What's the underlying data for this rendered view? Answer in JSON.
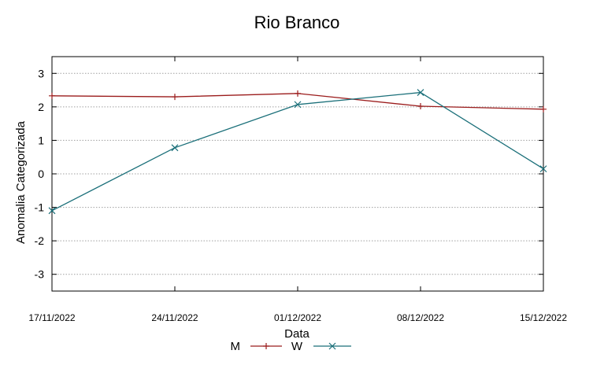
{
  "chart_data": {
    "type": "line",
    "title": "Rio Branco",
    "xlabel": "Data",
    "ylabel": "Anomalia Categorizada",
    "categories": [
      "17/11/2022",
      "24/11/2022",
      "01/12/2022",
      "08/12/2022",
      "15/12/2022"
    ],
    "ylim": [
      -3.5,
      3.5
    ],
    "yticks": [
      "-3",
      "-2",
      "-1",
      "0",
      "1",
      "2",
      "3"
    ],
    "grid": true,
    "legend": "bottom-center",
    "series": [
      {
        "name": "M",
        "color": "#9b1c1c",
        "marker": "plus",
        "values": [
          2.33,
          2.3,
          2.4,
          2.02,
          1.93
        ]
      },
      {
        "name": "W",
        "color": "#1a6f79",
        "marker": "cross",
        "values": [
          -1.1,
          0.78,
          2.07,
          2.43,
          0.15
        ]
      }
    ]
  }
}
